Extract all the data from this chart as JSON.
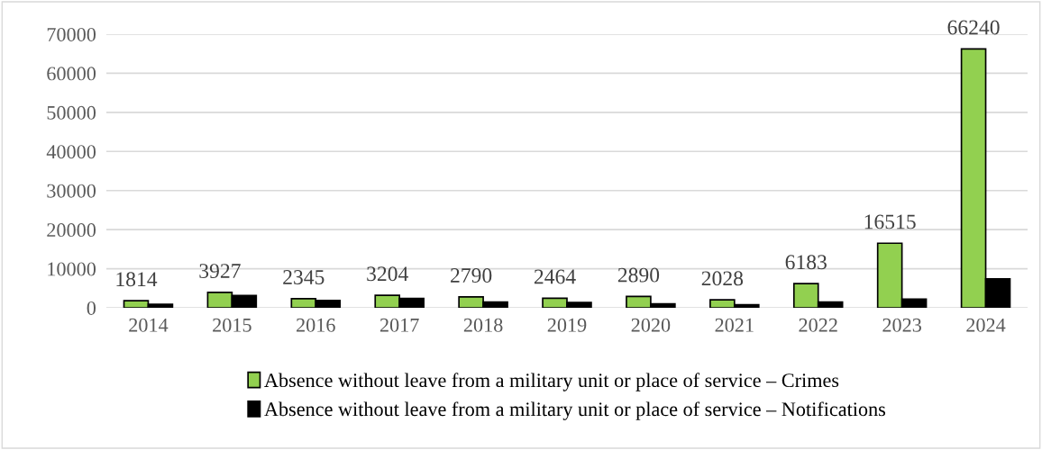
{
  "chart_data": {
    "type": "bar",
    "categories": [
      "2014",
      "2015",
      "2016",
      "2017",
      "2018",
      "2019",
      "2020",
      "2021",
      "2022",
      "2023",
      "2024"
    ],
    "series": [
      {
        "name": "Absence without leave from a military unit or place of service – Crimes",
        "color": "#92d050",
        "values": [
          1814,
          3927,
          2345,
          3204,
          2790,
          2464,
          2890,
          2028,
          6183,
          16515,
          66240
        ],
        "value_labels": [
          "1814",
          "3927",
          "2345",
          "3204",
          "2790",
          "2464",
          "2890",
          "2028",
          "6183",
          "16515",
          "66240"
        ]
      },
      {
        "name": "Absence without leave from a military unit or place of service – Notifications",
        "color": "#000000",
        "values": [
          900,
          3150,
          1900,
          2400,
          1500,
          1350,
          1000,
          800,
          1500,
          2200,
          7400
        ]
      }
    ],
    "ylim": [
      0,
      70000
    ],
    "yticks": [
      0,
      10000,
      20000,
      30000,
      40000,
      50000,
      60000,
      70000
    ],
    "grid": "y",
    "legend": "bottom"
  }
}
